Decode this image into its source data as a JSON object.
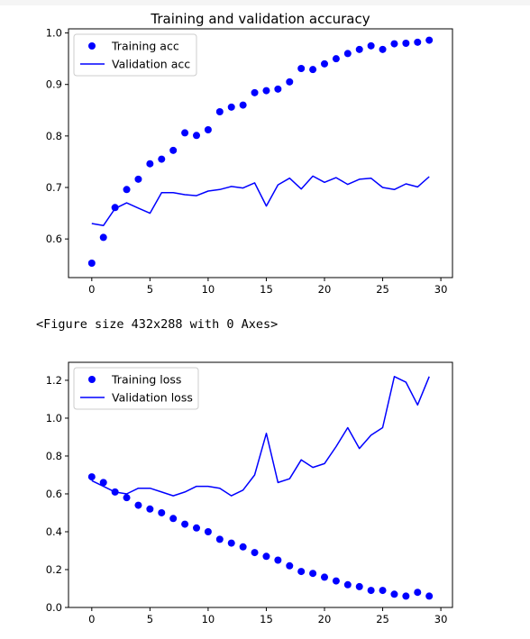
{
  "figure_text": "<Figure size 432x288 with 0 Axes>",
  "chart_data": [
    {
      "type": "scatter+line",
      "title": "Training and validation accuracy",
      "xlabel": "",
      "ylabel": "",
      "xlim": [
        -2,
        31
      ],
      "ylim": [
        0.525,
        1.008
      ],
      "xticks": [
        0,
        5,
        10,
        15,
        20,
        25,
        30
      ],
      "yticks": [
        0.6,
        0.7,
        0.8,
        0.9,
        1.0
      ],
      "ytick_labels": [
        "0.6",
        "0.7",
        "0.8",
        "0.9",
        "1.0"
      ],
      "legend": {
        "placement": "top-left",
        "entries": [
          {
            "label": "Training acc",
            "style": "dot"
          },
          {
            "label": "Validation acc",
            "style": "line"
          }
        ]
      },
      "grid": false,
      "series": [
        {
          "name": "Training acc",
          "kind": "dots",
          "color": "#0000ff",
          "x": [
            0,
            1,
            2,
            3,
            4,
            5,
            6,
            7,
            8,
            9,
            10,
            11,
            12,
            13,
            14,
            15,
            16,
            17,
            18,
            19,
            20,
            21,
            22,
            23,
            24,
            25,
            26,
            27,
            28,
            29
          ],
          "y": [
            0.553,
            0.603,
            0.661,
            0.696,
            0.716,
            0.746,
            0.755,
            0.772,
            0.806,
            0.801,
            0.812,
            0.847,
            0.856,
            0.86,
            0.884,
            0.888,
            0.891,
            0.905,
            0.931,
            0.929,
            0.94,
            0.95,
            0.96,
            0.968,
            0.975,
            0.968,
            0.979,
            0.98,
            0.982,
            0.986
          ]
        },
        {
          "name": "Validation acc",
          "kind": "line",
          "color": "#0000ff",
          "x": [
            0,
            1,
            2,
            3,
            4,
            5,
            6,
            7,
            8,
            9,
            10,
            11,
            12,
            13,
            14,
            15,
            16,
            17,
            18,
            19,
            20,
            21,
            22,
            23,
            24,
            25,
            26,
            27,
            28,
            29
          ],
          "y": [
            0.63,
            0.626,
            0.659,
            0.67,
            0.66,
            0.65,
            0.69,
            0.69,
            0.686,
            0.684,
            0.693,
            0.696,
            0.702,
            0.699,
            0.709,
            0.664,
            0.705,
            0.718,
            0.697,
            0.722,
            0.71,
            0.719,
            0.706,
            0.716,
            0.718,
            0.7,
            0.696,
            0.707,
            0.701,
            0.721
          ]
        }
      ]
    },
    {
      "type": "scatter+line",
      "title": "",
      "xlabel": "",
      "ylabel": "",
      "xlim": [
        -2,
        31
      ],
      "ylim": [
        0.0,
        1.295
      ],
      "xticks": [
        0,
        5,
        10,
        15,
        20,
        25,
        30
      ],
      "yticks": [
        0.0,
        0.2,
        0.4,
        0.6,
        0.8,
        1.0,
        1.2
      ],
      "ytick_labels": [
        "0.0",
        "0.2",
        "0.4",
        "0.6",
        "0.8",
        "1.0",
        "1.2"
      ],
      "legend": {
        "placement": "top-left",
        "entries": [
          {
            "label": "Training loss",
            "style": "dot"
          },
          {
            "label": "Validation loss",
            "style": "line"
          }
        ]
      },
      "grid": false,
      "series": [
        {
          "name": "Training loss",
          "kind": "dots",
          "color": "#0000ff",
          "x": [
            0,
            1,
            2,
            3,
            4,
            5,
            6,
            7,
            8,
            9,
            10,
            11,
            12,
            13,
            14,
            15,
            16,
            17,
            18,
            19,
            20,
            21,
            22,
            23,
            24,
            25,
            26,
            27,
            28,
            29
          ],
          "y": [
            0.69,
            0.66,
            0.61,
            0.58,
            0.54,
            0.52,
            0.5,
            0.47,
            0.44,
            0.42,
            0.4,
            0.36,
            0.34,
            0.32,
            0.29,
            0.27,
            0.25,
            0.22,
            0.19,
            0.18,
            0.16,
            0.14,
            0.12,
            0.11,
            0.09,
            0.09,
            0.07,
            0.06,
            0.08,
            0.06
          ]
        },
        {
          "name": "Validation loss",
          "kind": "line",
          "color": "#0000ff",
          "x": [
            0,
            1,
            2,
            3,
            4,
            5,
            6,
            7,
            8,
            9,
            10,
            11,
            12,
            13,
            14,
            15,
            16,
            17,
            18,
            19,
            20,
            21,
            22,
            23,
            24,
            25,
            26,
            27,
            28,
            29
          ],
          "y": [
            0.67,
            0.64,
            0.61,
            0.6,
            0.63,
            0.63,
            0.61,
            0.59,
            0.61,
            0.64,
            0.64,
            0.63,
            0.59,
            0.62,
            0.7,
            0.92,
            0.66,
            0.68,
            0.78,
            0.74,
            0.76,
            0.85,
            0.95,
            0.84,
            0.91,
            0.95,
            1.22,
            1.19,
            1.07,
            1.22
          ]
        }
      ]
    }
  ]
}
